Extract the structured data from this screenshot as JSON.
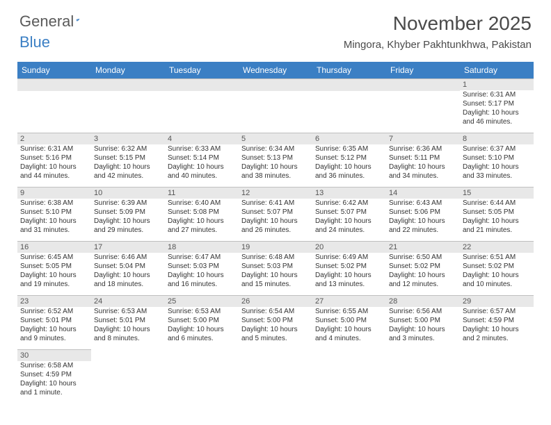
{
  "logo": {
    "text1": "General",
    "text2": "Blue"
  },
  "title": "November 2025",
  "location": "Mingora, Khyber Pakhtunkhwa, Pakistan",
  "weekdays": [
    "Sunday",
    "Monday",
    "Tuesday",
    "Wednesday",
    "Thursday",
    "Friday",
    "Saturday"
  ],
  "colors": {
    "header_bg": "#3b7fc4",
    "header_fg": "#ffffff",
    "daybar_bg": "#e8e8e8",
    "daybar_border": "#bfbfbf",
    "text": "#333333",
    "title_color": "#4a4a4a"
  },
  "first_weekday_index": 6,
  "days": [
    {
      "n": 1,
      "sr": "6:31 AM",
      "ss": "5:17 PM",
      "dl": "10 hours and 46 minutes."
    },
    {
      "n": 2,
      "sr": "6:31 AM",
      "ss": "5:16 PM",
      "dl": "10 hours and 44 minutes."
    },
    {
      "n": 3,
      "sr": "6:32 AM",
      "ss": "5:15 PM",
      "dl": "10 hours and 42 minutes."
    },
    {
      "n": 4,
      "sr": "6:33 AM",
      "ss": "5:14 PM",
      "dl": "10 hours and 40 minutes."
    },
    {
      "n": 5,
      "sr": "6:34 AM",
      "ss": "5:13 PM",
      "dl": "10 hours and 38 minutes."
    },
    {
      "n": 6,
      "sr": "6:35 AM",
      "ss": "5:12 PM",
      "dl": "10 hours and 36 minutes."
    },
    {
      "n": 7,
      "sr": "6:36 AM",
      "ss": "5:11 PM",
      "dl": "10 hours and 34 minutes."
    },
    {
      "n": 8,
      "sr": "6:37 AM",
      "ss": "5:10 PM",
      "dl": "10 hours and 33 minutes."
    },
    {
      "n": 9,
      "sr": "6:38 AM",
      "ss": "5:10 PM",
      "dl": "10 hours and 31 minutes."
    },
    {
      "n": 10,
      "sr": "6:39 AM",
      "ss": "5:09 PM",
      "dl": "10 hours and 29 minutes."
    },
    {
      "n": 11,
      "sr": "6:40 AM",
      "ss": "5:08 PM",
      "dl": "10 hours and 27 minutes."
    },
    {
      "n": 12,
      "sr": "6:41 AM",
      "ss": "5:07 PM",
      "dl": "10 hours and 26 minutes."
    },
    {
      "n": 13,
      "sr": "6:42 AM",
      "ss": "5:07 PM",
      "dl": "10 hours and 24 minutes."
    },
    {
      "n": 14,
      "sr": "6:43 AM",
      "ss": "5:06 PM",
      "dl": "10 hours and 22 minutes."
    },
    {
      "n": 15,
      "sr": "6:44 AM",
      "ss": "5:05 PM",
      "dl": "10 hours and 21 minutes."
    },
    {
      "n": 16,
      "sr": "6:45 AM",
      "ss": "5:05 PM",
      "dl": "10 hours and 19 minutes."
    },
    {
      "n": 17,
      "sr": "6:46 AM",
      "ss": "5:04 PM",
      "dl": "10 hours and 18 minutes."
    },
    {
      "n": 18,
      "sr": "6:47 AM",
      "ss": "5:03 PM",
      "dl": "10 hours and 16 minutes."
    },
    {
      "n": 19,
      "sr": "6:48 AM",
      "ss": "5:03 PM",
      "dl": "10 hours and 15 minutes."
    },
    {
      "n": 20,
      "sr": "6:49 AM",
      "ss": "5:02 PM",
      "dl": "10 hours and 13 minutes."
    },
    {
      "n": 21,
      "sr": "6:50 AM",
      "ss": "5:02 PM",
      "dl": "10 hours and 12 minutes."
    },
    {
      "n": 22,
      "sr": "6:51 AM",
      "ss": "5:02 PM",
      "dl": "10 hours and 10 minutes."
    },
    {
      "n": 23,
      "sr": "6:52 AM",
      "ss": "5:01 PM",
      "dl": "10 hours and 9 minutes."
    },
    {
      "n": 24,
      "sr": "6:53 AM",
      "ss": "5:01 PM",
      "dl": "10 hours and 8 minutes."
    },
    {
      "n": 25,
      "sr": "6:53 AM",
      "ss": "5:00 PM",
      "dl": "10 hours and 6 minutes."
    },
    {
      "n": 26,
      "sr": "6:54 AM",
      "ss": "5:00 PM",
      "dl": "10 hours and 5 minutes."
    },
    {
      "n": 27,
      "sr": "6:55 AM",
      "ss": "5:00 PM",
      "dl": "10 hours and 4 minutes."
    },
    {
      "n": 28,
      "sr": "6:56 AM",
      "ss": "5:00 PM",
      "dl": "10 hours and 3 minutes."
    },
    {
      "n": 29,
      "sr": "6:57 AM",
      "ss": "4:59 PM",
      "dl": "10 hours and 2 minutes."
    },
    {
      "n": 30,
      "sr": "6:58 AM",
      "ss": "4:59 PM",
      "dl": "10 hours and 1 minute."
    }
  ],
  "labels": {
    "sunrise": "Sunrise:",
    "sunset": "Sunset:",
    "daylight": "Daylight:"
  }
}
